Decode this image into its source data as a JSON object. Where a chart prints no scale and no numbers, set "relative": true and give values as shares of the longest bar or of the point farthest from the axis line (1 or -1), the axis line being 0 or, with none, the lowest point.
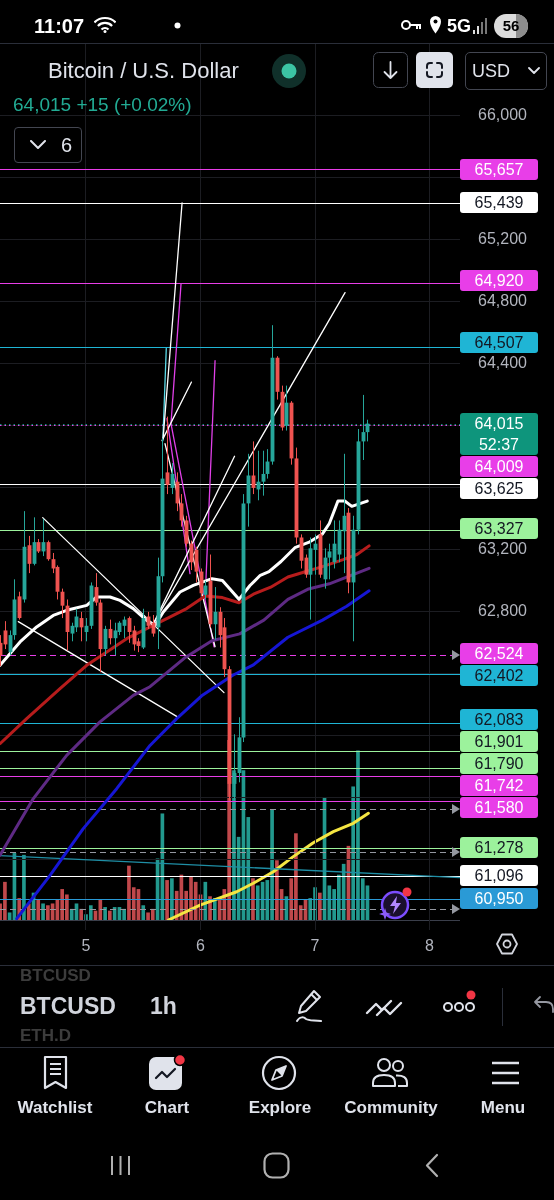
{
  "chart_data": [
    {
      "type": "candlestick",
      "title": "Bitcoin / U.S. Dollar",
      "subtitle": "64,015 +15 (+0.02%)",
      "x": [
        4.25,
        4.292,
        4.333,
        4.375,
        4.417,
        4.458,
        4.5,
        4.542,
        4.583,
        4.625,
        4.667,
        4.708,
        4.75,
        4.792,
        4.833,
        4.875,
        4.917,
        4.958,
        5,
        5.042,
        5.083,
        5.125,
        5.167,
        5.208,
        5.25,
        5.292,
        5.333,
        5.375,
        5.417,
        5.458,
        5.5,
        5.542,
        5.583,
        5.625,
        5.667,
        5.708,
        5.75,
        5.792,
        5.833,
        5.875,
        5.917,
        5.958,
        6,
        6.042,
        6.083,
        6.125,
        6.167,
        6.208,
        6.25,
        6.292,
        6.333,
        6.375,
        6.417,
        6.458,
        6.5,
        6.542,
        6.583,
        6.625,
        6.667,
        6.708,
        6.75,
        6.792,
        6.833,
        6.875,
        6.917,
        6.958,
        7,
        7.042,
        7.083,
        7.125,
        7.167,
        7.208,
        7.25,
        7.292,
        7.333,
        7.375,
        7.417,
        7.458
      ],
      "ohlc": [
        [
          62600,
          62650,
          62450,
          62520
        ],
        [
          62680,
          62740,
          62560,
          62590
        ],
        [
          62540,
          62680,
          62520,
          62650
        ],
        [
          62650,
          63010,
          62620,
          62880
        ],
        [
          62900,
          62930,
          62750,
          62760
        ],
        [
          62880,
          63450,
          62860,
          63220
        ],
        [
          63230,
          63290,
          63050,
          63110
        ],
        [
          63110,
          63410,
          63100,
          63250
        ],
        [
          63250,
          63270,
          63180,
          63190
        ],
        [
          63190,
          63400,
          63160,
          63250
        ],
        [
          63250,
          63260,
          63130,
          63140
        ],
        [
          63140,
          63180,
          63050,
          63080
        ],
        [
          63090,
          63100,
          62880,
          62930
        ],
        [
          62930,
          62950,
          62760,
          62840
        ],
        [
          62840,
          62880,
          62550,
          62670
        ],
        [
          62660,
          62730,
          62610,
          62710
        ],
        [
          62700,
          62820,
          62670,
          62770
        ],
        [
          62760,
          62800,
          62610,
          62700
        ],
        [
          62670,
          62760,
          62610,
          62710
        ],
        [
          62710,
          62990,
          62690,
          62970
        ],
        [
          62960,
          63050,
          62840,
          62860
        ],
        [
          62860,
          62880,
          62410,
          62560
        ],
        [
          62560,
          62710,
          62520,
          62690
        ],
        [
          62690,
          62750,
          62590,
          62630
        ],
        [
          62630,
          62730,
          62520,
          62680
        ],
        [
          62670,
          62740,
          62650,
          62730
        ],
        [
          62710,
          62770,
          62630,
          62750
        ],
        [
          62760,
          62770,
          62600,
          62670
        ],
        [
          62680,
          62710,
          62550,
          62590
        ],
        [
          62610,
          62630,
          62540,
          62580
        ],
        [
          62570,
          62820,
          62560,
          62760
        ],
        [
          62770,
          62800,
          62690,
          62710
        ],
        [
          62730,
          62780,
          62640,
          62660
        ],
        [
          62700,
          63150,
          62560,
          63030
        ],
        [
          63030,
          63920,
          62990,
          63660
        ],
        [
          63700,
          64060,
          63560,
          63620
        ],
        [
          63600,
          63760,
          63560,
          63690
        ],
        [
          63640,
          63700,
          63450,
          63500
        ],
        [
          63500,
          63560,
          63350,
          63390
        ],
        [
          63390,
          63420,
          63220,
          63240
        ],
        [
          63240,
          63260,
          63070,
          63120
        ],
        [
          63200,
          63220,
          62990,
          63060
        ],
        [
          63060,
          63080,
          62900,
          62920
        ],
        [
          62910,
          63000,
          62880,
          62970
        ],
        [
          63000,
          63170,
          62700,
          62720
        ],
        [
          62720,
          62960,
          62620,
          62800
        ],
        [
          62800,
          62830,
          62570,
          62650
        ],
        [
          62700,
          62760,
          62380,
          62430
        ],
        [
          62430,
          62450,
          61580,
          61690
        ],
        [
          61690,
          62010,
          61580,
          61760
        ],
        [
          61760,
          62120,
          61700,
          61990
        ],
        [
          61990,
          63560,
          61960,
          63500
        ],
        [
          63500,
          63820,
          63350,
          63680
        ],
        [
          63680,
          63900,
          63560,
          63600
        ],
        [
          63590,
          63840,
          63520,
          63640
        ],
        [
          63640,
          63840,
          63550,
          63690
        ],
        [
          63690,
          63850,
          63660,
          63770
        ],
        [
          63770,
          64650,
          63750,
          64440
        ],
        [
          64440,
          64450,
          64170,
          64220
        ],
        [
          64220,
          64260,
          63970,
          63990
        ],
        [
          64000,
          64260,
          63970,
          64150
        ],
        [
          64150,
          64160,
          63750,
          63790
        ],
        [
          63790,
          63860,
          63240,
          63280
        ],
        [
          63280,
          63300,
          63080,
          63130
        ],
        [
          63150,
          63170,
          63020,
          63040
        ],
        [
          63040,
          63280,
          62750,
          63210
        ],
        [
          63200,
          63300,
          63040,
          63240
        ],
        [
          63300,
          63390,
          63020,
          63040
        ],
        [
          63010,
          63210,
          62950,
          63150
        ],
        [
          63150,
          63240,
          63010,
          63190
        ],
        [
          63120,
          63390,
          63080,
          63240
        ],
        [
          63170,
          63390,
          63120,
          63330
        ],
        [
          63320,
          63820,
          63050,
          63420
        ],
        [
          63440,
          63470,
          62920,
          62990
        ],
        [
          62990,
          63420,
          62610,
          63330
        ],
        [
          63330,
          63980,
          63300,
          63900
        ],
        [
          63900,
          64200,
          63780,
          63960
        ],
        [
          63960,
          64040,
          63900,
          64015
        ]
      ],
      "colors": [
        "#ef5350",
        "#ef5350",
        "#26a69a",
        "#26a69a",
        "#ef5350",
        "#26a69a",
        "#ef5350",
        "#26a69a",
        "#ef5350",
        "#26a69a",
        "#ef5350",
        "#ef5350",
        "#ef5350",
        "#ef5350",
        "#ef5350",
        "#26a69a",
        "#26a69a",
        "#ef5350",
        "#26a69a",
        "#26a69a",
        "#ef5350",
        "#ef5350",
        "#26a69a",
        "#ef5350",
        "#26a69a",
        "#26a69a",
        "#26a69a",
        "#ef5350",
        "#ef5350",
        "#ef5350",
        "#26a69a",
        "#ef5350",
        "#ef5350",
        "#26a69a",
        "#26a69a",
        "#ef5350",
        "#26a69a",
        "#ef5350",
        "#ef5350",
        "#ef5350",
        "#ef5350",
        "#ef5350",
        "#ef5350",
        "#26a69a",
        "#ef5350",
        "#26a69a",
        "#ef5350",
        "#ef5350",
        "#ef5350",
        "#26a69a",
        "#26a69a",
        "#26a69a",
        "#26a69a",
        "#ef5350",
        "#26a69a",
        "#26a69a",
        "#26a69a",
        "#26a69a",
        "#ef5350",
        "#ef5350",
        "#26a69a",
        "#ef5350",
        "#ef5350",
        "#ef5350",
        "#ef5350",
        "#26a69a",
        "#26a69a",
        "#ef5350",
        "#26a69a",
        "#26a69a",
        "#26a69a",
        "#26a69a",
        "#26a69a",
        "#ef5350",
        "#26a69a",
        "#26a69a",
        "#26a69a",
        "#26a69a"
      ],
      "series": [
        {
          "type": "line",
          "color": "#ffffff",
          "x": [
            4.249,
            4.424,
            4.569,
            4.714,
            4.831,
            5.006,
            5.093,
            5.21,
            5.297,
            5.413,
            5.53,
            5.603,
            5.675,
            5.821,
            5.937,
            6.1,
            6.191,
            6.336,
            6.432,
            6.522,
            6.598,
            6.703,
            6.824,
            6.944,
            7.065,
            7.125,
            7.2,
            7.26,
            7.321,
            7.456
          ],
          "values": [
            62455,
            62606,
            62703,
            62777,
            62810,
            62842,
            62896,
            62896,
            62874,
            62821,
            62745,
            62713,
            62799,
            62928,
            62971,
            63014,
            63003,
            62881,
            62970,
            63036,
            63059,
            63125,
            63214,
            63248,
            63303,
            63370,
            63515,
            63515,
            63481,
            63515
          ]
        },
        {
          "type": "line",
          "color": "#b71c1c",
          "x": [
            4.249,
            4.482,
            4.773,
            5.006,
            5.181,
            5.355,
            5.53,
            5.705,
            5.879,
            6.041,
            6.191,
            6.336,
            6.462,
            6.613,
            6.763,
            6.914,
            7.065,
            7.245,
            7.366,
            7.472
          ],
          "values": [
            61949,
            62111,
            62304,
            62455,
            62541,
            62627,
            62692,
            62756,
            62821,
            62903,
            62892,
            62859,
            62914,
            62959,
            63025,
            63059,
            63092,
            63137,
            63170,
            63226
          ]
        },
        {
          "type": "line",
          "color": "#5e2a84",
          "x": [
            4.249,
            4.54,
            4.831,
            5.122,
            5.413,
            5.559,
            5.86,
            6.1,
            6.342,
            6.553,
            6.763,
            6.944,
            7.125,
            7.472
          ],
          "values": [
            61229,
            61595,
            61874,
            62090,
            62261,
            62317,
            62502,
            62614,
            62658,
            62747,
            62881,
            62948,
            62981,
            63081
          ]
        },
        {
          "type": "line",
          "color": "#1616d4",
          "x": [
            4.395,
            4.686,
            4.976,
            5.268,
            5.559,
            5.792,
            6.01,
            6.282,
            6.462,
            6.763,
            7.065,
            7.276,
            7.472
          ],
          "values": [
            60820,
            61100,
            61401,
            61659,
            61938,
            62111,
            62258,
            62391,
            62458,
            62636,
            62747,
            62836,
            62936
          ]
        },
        {
          "type": "line",
          "color": "#ffffff",
          "x": [
            4.622,
            6.205
          ],
          "values": [
            63408,
            62279
          ]
        },
        {
          "type": "line",
          "color": "#ffffff",
          "x": [
            4.409,
            5.795
          ],
          "values": [
            62737,
            62124
          ]
        },
        {
          "type": "line",
          "color": "#ffffff",
          "x": [
            5.673,
            5.839
          ],
          "values": [
            63918,
            65439
          ]
        },
        {
          "type": "line",
          "color": "#ffffff",
          "x": [
            5.664,
            5.921
          ],
          "values": [
            63905,
            64283
          ]
        },
        {
          "type": "line",
          "color": "#ffffff",
          "x": [
            5.589,
            6.297
          ],
          "values": [
            62724,
            63804
          ]
        },
        {
          "type": "line",
          "color": "#ffffff",
          "x": [
            5.589,
            7.262
          ],
          "values": [
            62724,
            64860
          ]
        },
        {
          "type": "line",
          "color": "#ffffff",
          "x": [
            5.69,
            6.127
          ],
          "values": [
            63885,
            62575
          ]
        },
        {
          "type": "line",
          "color": "#5ad8e6",
          "x": [
            5.671,
            5.701
          ],
          "values": [
            63905,
            64500
          ]
        },
        {
          "type": "line",
          "color": "#e040e8",
          "x": [
            5.83,
            5.742,
            6.118
          ],
          "values": [
            64918,
            64014,
            62575
          ]
        },
        {
          "type": "line",
          "color": "#e040e8",
          "x": [
            6.127,
            6.048
          ],
          "values": [
            64421,
            63014
          ]
        },
        {
          "type": "line",
          "color": "#e040e8",
          "x": [
            5.707,
            5.908
          ],
          "values": [
            64047,
            63047
          ]
        },
        {
          "type": "line",
          "color": "#1f8fa6",
          "x": [
            4.249,
            8.266
          ],
          "values": [
            61227,
            61085
          ]
        }
      ],
      "ref_lines": [
        {
          "axis": "y",
          "value": 65657,
          "label": "65,657",
          "color": "#e83ee8"
        },
        {
          "axis": "y",
          "value": 65439,
          "label": "65,439",
          "color": "#ffffff"
        },
        {
          "axis": "y",
          "value": 64920,
          "label": "64,920",
          "color": "#e83ee8"
        },
        {
          "axis": "y",
          "value": 64507,
          "label": "64,507",
          "color": "#1fb5d5"
        },
        {
          "axis": "y",
          "value": 64015,
          "label": "64,015",
          "color": "#0e957c",
          "line_style": "dotted"
        },
        {
          "axis": "y",
          "value": 64009,
          "label": "64,009",
          "color": "#e83ee8",
          "line_style": "dotted"
        },
        {
          "axis": "y",
          "value": 63625,
          "label": "63,625",
          "color": "#ffffff"
        },
        {
          "axis": "y",
          "value": 63327,
          "label": "63,327",
          "color": "#9cf29c"
        },
        {
          "axis": "y",
          "value": 62524,
          "label": "62,524",
          "color": "#e83ee8",
          "line_style": "dashed"
        },
        {
          "axis": "y",
          "value": 62402,
          "label": "62,402",
          "color": "#1fb5d5"
        },
        {
          "axis": "y",
          "value": 62083,
          "label": "62,083",
          "color": "#1fb5d5"
        },
        {
          "axis": "y",
          "value": 61901,
          "label": "61,901",
          "color": "#9cf29c"
        },
        {
          "axis": "y",
          "value": 61790,
          "label": "61,790",
          "color": "#9cf29c"
        },
        {
          "axis": "y",
          "value": 61742,
          "label": "61,742",
          "color": "#e83ee8"
        },
        {
          "axis": "y",
          "value": 61580,
          "label": "61,580",
          "color": "#e83ee8"
        },
        {
          "axis": "y",
          "value": 61278,
          "label": "61,278",
          "color": "#9cf29c"
        },
        {
          "axis": "y",
          "value": 61096,
          "label": "61,096",
          "color": "#ffffff"
        },
        {
          "axis": "y",
          "value": 60950,
          "label": "60,950",
          "color": "#2a9ad6"
        },
        {
          "axis": "y",
          "value": 61530,
          "color": "#9598a1",
          "line_style": "dashed"
        },
        {
          "axis": "y",
          "value": 61250,
          "color": "#9598a1",
          "line_style": "dashed"
        },
        {
          "axis": "y",
          "value": 60880,
          "color": "#9598a1",
          "line_style": "dashed"
        }
      ],
      "xlim": [
        4.249,
        8.266
      ],
      "ylim": [
        60747,
        66471
      ],
      "xticks": [
        5,
        6,
        7,
        8
      ],
      "yticks": [
        {
          "value": 61200,
          "label": null
        },
        {
          "value": 61600,
          "label": null
        },
        {
          "value": 62000,
          "label": null
        },
        {
          "value": 62400,
          "label": null
        },
        {
          "value": 62800,
          "label": "62,800"
        },
        {
          "value": 63200,
          "label": "63,200"
        },
        {
          "value": 63600,
          "label": null
        },
        {
          "value": 64000,
          "label": null
        },
        {
          "value": 64400,
          "label": "64,400"
        },
        {
          "value": 64800,
          "label": "64,800"
        },
        {
          "value": 65200,
          "label": "65,200"
        },
        {
          "value": 65600,
          "label": null
        },
        {
          "value": 66000,
          "label": "66,000"
        }
      ],
      "grid": true,
      "annotations": [
        "11:07",
        "5G",
        "56",
        "USD",
        "6",
        "52:37",
        "BTCUSD",
        "BTCUSD",
        "ETH.D",
        "1h",
        "Watchlist",
        "Chart",
        "Explore",
        "Community",
        "Menu"
      ]
    },
    {
      "type": "bar",
      "relative": true,
      "x": [
        4.25,
        4.292,
        4.333,
        4.375,
        4.417,
        4.458,
        4.5,
        4.542,
        4.583,
        4.625,
        4.667,
        4.708,
        4.75,
        4.792,
        4.833,
        4.875,
        4.917,
        4.958,
        5,
        5.042,
        5.083,
        5.125,
        5.167,
        5.208,
        5.25,
        5.292,
        5.333,
        5.375,
        5.417,
        5.458,
        5.5,
        5.542,
        5.583,
        5.625,
        5.667,
        5.708,
        5.75,
        5.792,
        5.833,
        5.875,
        5.917,
        5.958,
        6,
        6.042,
        6.083,
        6.125,
        6.167,
        6.208,
        6.25,
        6.292,
        6.333,
        6.375,
        6.417,
        6.458,
        6.5,
        6.542,
        6.583,
        6.625,
        6.667,
        6.708,
        6.75,
        6.792,
        6.833,
        6.875,
        6.917,
        6.958,
        7,
        7.042,
        7.083,
        7.125,
        7.167,
        7.208,
        7.25,
        7.292,
        7.333,
        7.375,
        7.417,
        7.458
      ],
      "xlim": [
        4.249,
        8.266
      ],
      "tick_labels": false,
      "series": [
        {
          "type": "bar",
          "colors": [
            "#c0484b",
            "#c0484b",
            "#22998e",
            "#22998e",
            "#c0484b",
            "#22998e",
            "#c0484b",
            "#22998e",
            "#c0484b",
            "#22998e",
            "#c0484b",
            "#c0484b",
            "#c0484b",
            "#c0484b",
            "#c0484b",
            "#22998e",
            "#22998e",
            "#c0484b",
            "#22998e",
            "#22998e",
            "#c0484b",
            "#c0484b",
            "#22998e",
            "#c0484b",
            "#22998e",
            "#22998e",
            "#22998e",
            "#c0484b",
            "#c0484b",
            "#c0484b",
            "#22998e",
            "#c0484b",
            "#c0484b",
            "#22998e",
            "#22998e",
            "#c0484b",
            "#22998e",
            "#c0484b",
            "#c0484b",
            "#c0484b",
            "#c0484b",
            "#c0484b",
            "#c0484b",
            "#22998e",
            "#c0484b",
            "#22998e",
            "#c0484b",
            "#c0484b",
            "#c0484b",
            "#22998e",
            "#22998e",
            "#22998e",
            "#22998e",
            "#c0484b",
            "#22998e",
            "#22998e",
            "#22998e",
            "#22998e",
            "#c0484b",
            "#c0484b",
            "#22998e",
            "#c0484b",
            "#c0484b",
            "#c0484b",
            "#c0484b",
            "#22998e",
            "#22998e",
            "#c0484b",
            "#22998e",
            "#22998e",
            "#22998e",
            "#22998e",
            "#22998e",
            "#c0484b",
            "#22998e",
            "#22998e",
            "#22998e",
            "#22998e"
          ],
          "values": [
            0.09,
            0.21,
            0.04,
            0.37,
            0.12,
            0.36,
            0.09,
            0.15,
            0.11,
            0.09,
            0.08,
            0.09,
            0.11,
            0.17,
            0.14,
            0.06,
            0.09,
            0.06,
            0.03,
            0.08,
            0.05,
            0.11,
            0.07,
            0.05,
            0.07,
            0.07,
            0.06,
            0.3,
            0.18,
            0.17,
            0.08,
            0.04,
            0.06,
            0.34,
            0.59,
            0.22,
            0.23,
            0.16,
            0.25,
            0.16,
            0.24,
            0.21,
            0.14,
            0.21,
            0.13,
            0.12,
            0.11,
            0.17,
            1,
            0.83,
            0.46,
            0.83,
            0.57,
            0.23,
            0.19,
            0.21,
            0.22,
            0.61,
            0.33,
            0.17,
            0.13,
            0.23,
            0.48,
            0.08,
            0.11,
            0.12,
            0.18,
            0.15,
            0.68,
            0.19,
            0.17,
            0.25,
            0.31,
            0.41,
            0.74,
            0.94,
            0.23,
            0.19
          ]
        },
        {
          "type": "line",
          "color": "#f5e642",
          "x": [
            5.719,
            5.996,
            6.316,
            6.461,
            6.636,
            6.81,
            6.985,
            7.16,
            7.334,
            7.466
          ],
          "values": [
            0,
            0.083,
            0.157,
            0.204,
            0.268,
            0.352,
            0.429,
            0.491,
            0.537,
            0.593
          ]
        }
      ]
    }
  ]
}
